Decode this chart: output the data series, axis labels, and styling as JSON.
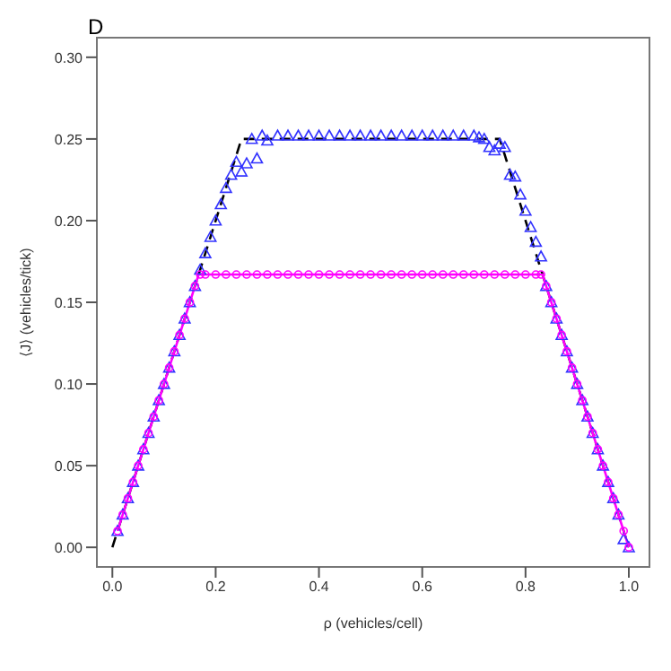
{
  "chart_data": {
    "type": "scatter",
    "title": "D",
    "xlabel": "ρ (vehicles/cell)",
    "ylabel": "⟨J⟩ (vehicles/tick)",
    "xlim": [
      -0.03,
      1.04
    ],
    "ylim": [
      -0.012,
      0.312
    ],
    "xticks": [
      {
        "value": 0,
        "label": "0.0"
      },
      {
        "value": 0.2,
        "label": "0.2"
      },
      {
        "value": 0.4,
        "label": "0.4"
      },
      {
        "value": 0.6,
        "label": "0.6"
      },
      {
        "value": 0.8,
        "label": "0.8"
      },
      {
        "value": 1,
        "label": "1.0"
      }
    ],
    "yticks": [
      {
        "value": 0,
        "label": "0.00"
      },
      {
        "value": 0.05,
        "label": "0.05"
      },
      {
        "value": 0.1,
        "label": "0.10"
      },
      {
        "value": 0.15,
        "label": "0.15"
      },
      {
        "value": 0.2,
        "label": "0.20"
      },
      {
        "value": 0.25,
        "label": "0.25"
      },
      {
        "value": 0.3,
        "label": "0.30"
      }
    ],
    "grid": false,
    "legend": false,
    "series": [
      {
        "marker": "triangle",
        "color": "#3333ff",
        "x": [
          0.01,
          0.02,
          0.03,
          0.04,
          0.05,
          0.06,
          0.07,
          0.08,
          0.09,
          0.1,
          0.11,
          0.12,
          0.13,
          0.14,
          0.15,
          0.16,
          0.17,
          0.18,
          0.19,
          0.2,
          0.21,
          0.22,
          0.23,
          0.24,
          0.25,
          0.26,
          0.27,
          0.28,
          0.29,
          0.3,
          0.32,
          0.34,
          0.36,
          0.38,
          0.4,
          0.42,
          0.44,
          0.46,
          0.48,
          0.5,
          0.52,
          0.54,
          0.56,
          0.58,
          0.6,
          0.62,
          0.64,
          0.66,
          0.68,
          0.7,
          0.71,
          0.72,
          0.73,
          0.74,
          0.75,
          0.76,
          0.77,
          0.78,
          0.79,
          0.8,
          0.81,
          0.82,
          0.83,
          0.84,
          0.85,
          0.86,
          0.87,
          0.88,
          0.89,
          0.9,
          0.91,
          0.92,
          0.93,
          0.94,
          0.95,
          0.96,
          0.97,
          0.98,
          0.99,
          1.0
        ],
        "values": [
          0.01,
          0.02,
          0.03,
          0.04,
          0.05,
          0.06,
          0.07,
          0.08,
          0.09,
          0.1,
          0.11,
          0.12,
          0.13,
          0.14,
          0.15,
          0.16,
          0.17,
          0.18,
          0.19,
          0.2,
          0.21,
          0.22,
          0.228,
          0.236,
          0.23,
          0.235,
          0.25,
          0.238,
          0.252,
          0.249,
          0.252,
          0.252,
          0.252,
          0.252,
          0.252,
          0.252,
          0.252,
          0.252,
          0.252,
          0.252,
          0.252,
          0.252,
          0.252,
          0.252,
          0.252,
          0.252,
          0.252,
          0.252,
          0.252,
          0.252,
          0.251,
          0.25,
          0.245,
          0.243,
          0.247,
          0.245,
          0.228,
          0.227,
          0.216,
          0.206,
          0.196,
          0.187,
          0.178,
          0.16,
          0.15,
          0.14,
          0.13,
          0.12,
          0.11,
          0.1,
          0.09,
          0.08,
          0.07,
          0.06,
          0.05,
          0.04,
          0.03,
          0.02,
          0.005,
          0.0
        ]
      },
      {
        "marker": "circle",
        "color": "#ff00ff",
        "x": [
          0.01,
          0.02,
          0.03,
          0.04,
          0.05,
          0.06,
          0.07,
          0.08,
          0.09,
          0.1,
          0.11,
          0.12,
          0.13,
          0.14,
          0.15,
          0.16,
          0.17,
          0.18,
          0.2,
          0.22,
          0.24,
          0.26,
          0.28,
          0.3,
          0.32,
          0.34,
          0.36,
          0.38,
          0.4,
          0.42,
          0.44,
          0.46,
          0.48,
          0.5,
          0.52,
          0.54,
          0.56,
          0.58,
          0.6,
          0.62,
          0.64,
          0.66,
          0.68,
          0.7,
          0.72,
          0.74,
          0.76,
          0.78,
          0.8,
          0.82,
          0.83,
          0.84,
          0.85,
          0.86,
          0.87,
          0.88,
          0.89,
          0.9,
          0.91,
          0.92,
          0.93,
          0.94,
          0.95,
          0.96,
          0.97,
          0.98,
          0.99,
          1.0
        ],
        "values": [
          0.01,
          0.02,
          0.03,
          0.04,
          0.05,
          0.06,
          0.07,
          0.08,
          0.09,
          0.1,
          0.11,
          0.12,
          0.13,
          0.14,
          0.15,
          0.16,
          0.167,
          0.167,
          0.167,
          0.167,
          0.167,
          0.167,
          0.167,
          0.167,
          0.167,
          0.167,
          0.167,
          0.167,
          0.167,
          0.167,
          0.167,
          0.167,
          0.167,
          0.167,
          0.167,
          0.167,
          0.167,
          0.167,
          0.167,
          0.167,
          0.167,
          0.167,
          0.167,
          0.167,
          0.167,
          0.167,
          0.167,
          0.167,
          0.167,
          0.167,
          0.167,
          0.16,
          0.15,
          0.14,
          0.13,
          0.12,
          0.11,
          0.1,
          0.09,
          0.08,
          0.07,
          0.06,
          0.05,
          0.04,
          0.03,
          0.02,
          0.01,
          0.0
        ]
      },
      {
        "type": "line",
        "line_style": "dashed",
        "marker": "none",
        "color": "#000000",
        "x": [
          0.0,
          0.25,
          0.75,
          1.0
        ],
        "values": [
          0.0,
          0.25,
          0.25,
          0.0
        ]
      },
      {
        "type": "line",
        "line_style": "solid",
        "marker": "none",
        "color": "#ff00ff",
        "x": [
          0.01,
          0.167,
          0.833,
          1.0
        ],
        "values": [
          0.01,
          0.167,
          0.167,
          0.0
        ]
      }
    ]
  }
}
